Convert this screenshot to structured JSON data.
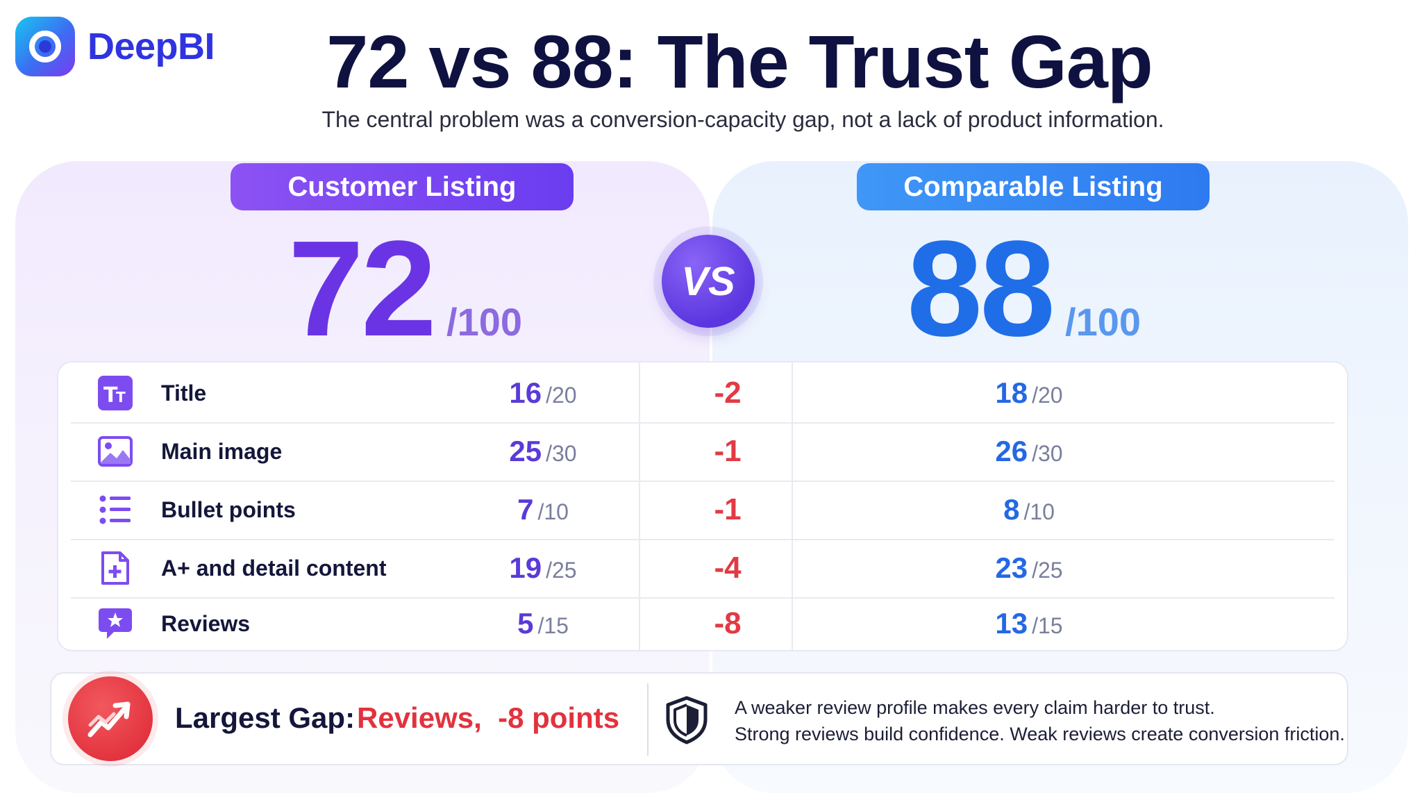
{
  "brand": {
    "name": "DeepBI",
    "logo_icon": "deepbi-logo-icon"
  },
  "header": {
    "title": "72 vs 88: The Trust Gap",
    "subtitle": "The central problem was a conversion-capacity gap, not a lack of product information."
  },
  "colors": {
    "customer_accent": "#6a34e4",
    "comparable_accent": "#1f6ee8",
    "gap_red": "#e23a44"
  },
  "customer": {
    "label": "Customer Listing",
    "score": "72",
    "max": "/100"
  },
  "comparable": {
    "label": "Comparable Listing",
    "score": "88",
    "max": "/100"
  },
  "vs_label": "VS",
  "rows": [
    {
      "icon": "text-format-icon",
      "label": "Title",
      "customer": "16",
      "customer_max": "/20",
      "diff": "-2",
      "comparable": "18",
      "comparable_max": "/20"
    },
    {
      "icon": "image-icon",
      "label": "Main image",
      "customer": "25",
      "customer_max": "/30",
      "diff": "-1",
      "comparable": "26",
      "comparable_max": "/30"
    },
    {
      "icon": "bullet-list-icon",
      "label": "Bullet points",
      "customer": "7",
      "customer_max": "/10",
      "diff": "-1",
      "comparable": "8",
      "comparable_max": "/10"
    },
    {
      "icon": "document-plus-icon",
      "label": "A+ and detail content",
      "customer": "19",
      "customer_max": "/25",
      "diff": "-4",
      "comparable": "23",
      "comparable_max": "/25"
    },
    {
      "icon": "star-chat-icon",
      "label": "Reviews",
      "customer": "5",
      "customer_max": "/15",
      "diff": "-8",
      "comparable": "13",
      "comparable_max": "/15"
    }
  ],
  "summary": {
    "label": "Largest Gap:",
    "value": "Reviews,  -8 points",
    "icon": "trending-chart-icon",
    "note_icon": "shield-icon",
    "note_line1": "A weaker review profile makes every claim harder to trust.",
    "note_line2": "Strong reviews build confidence. Weak reviews create conversion friction."
  }
}
